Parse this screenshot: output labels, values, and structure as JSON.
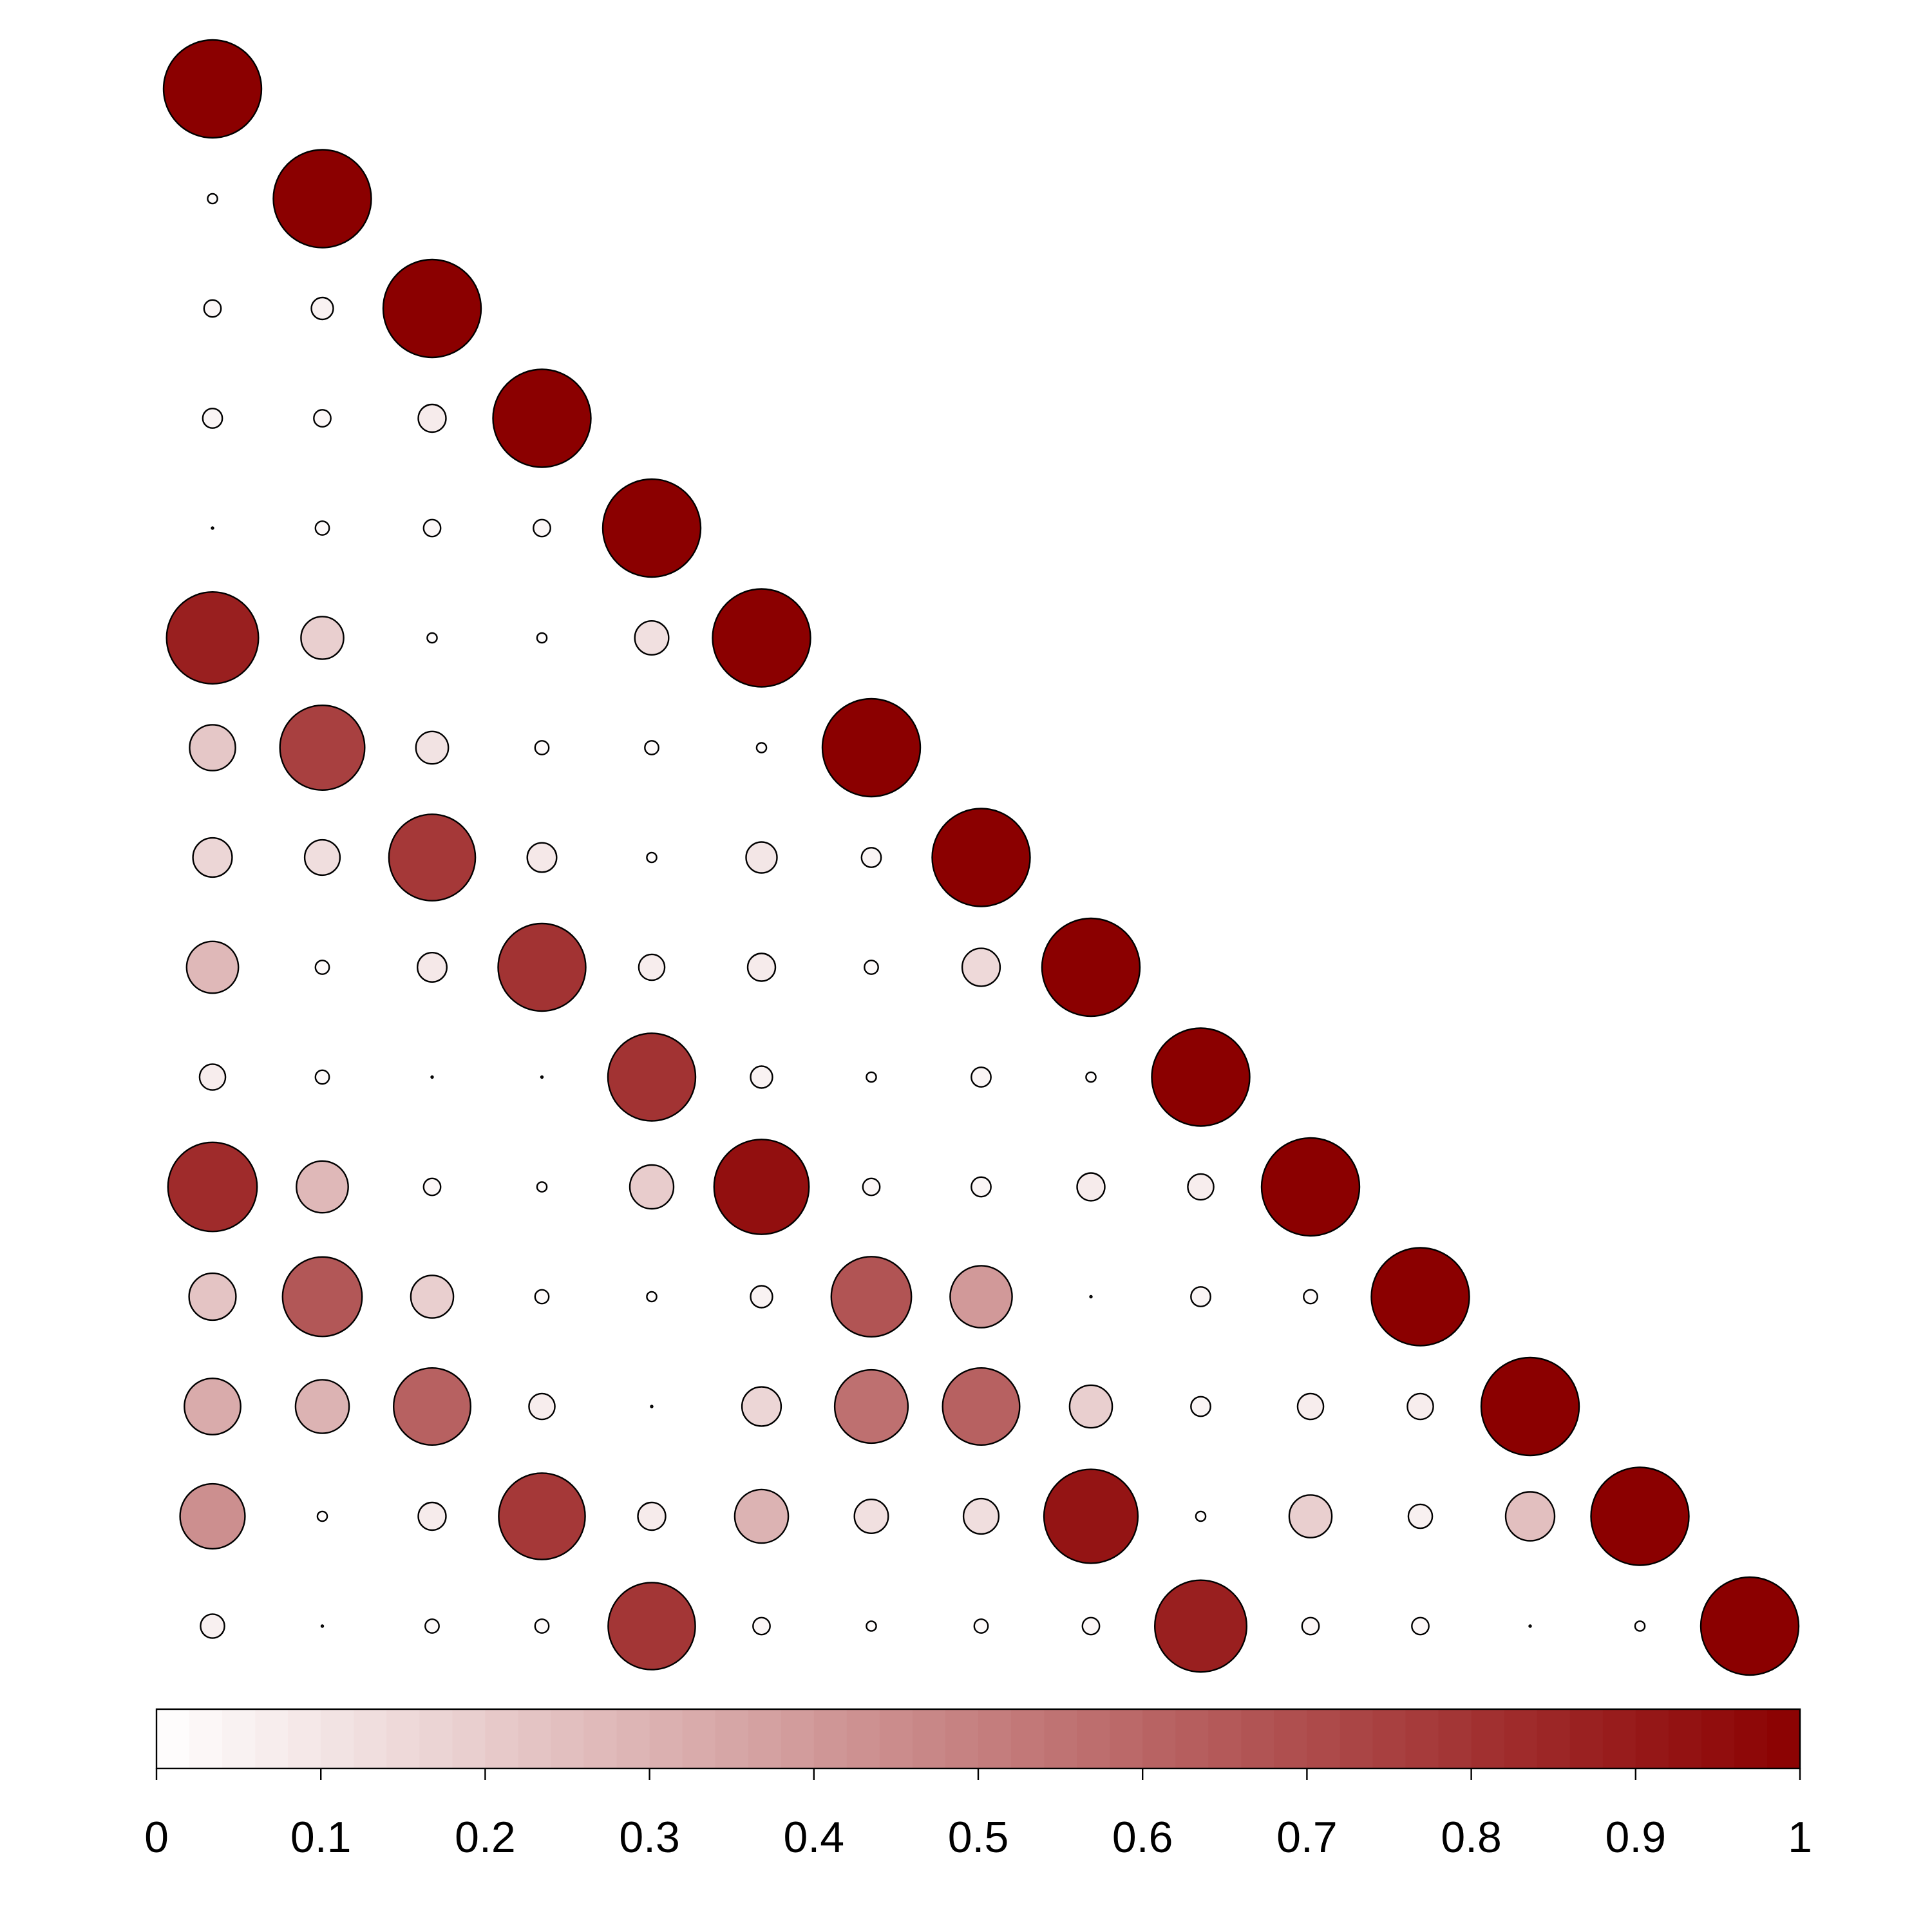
{
  "chart_data": {
    "type": "heatmap",
    "title": "",
    "xlabel": "",
    "ylabel": "",
    "encoding": "lower-triangle correlation matrix; circle area and fill colour scale with value",
    "variables": 15,
    "matrix": [
      [
        1.0
      ],
      [
        0.01,
        1.0
      ],
      [
        0.03,
        0.05,
        1.0
      ],
      [
        0.04,
        0.03,
        0.08,
        1.0
      ],
      [
        0.0,
        0.02,
        0.03,
        0.03,
        1.0
      ],
      [
        0.88,
        0.19,
        0.01,
        0.01,
        0.12,
        1.0
      ],
      [
        0.22,
        0.75,
        0.11,
        0.02,
        0.02,
        0.01,
        1.0
      ],
      [
        0.16,
        0.13,
        0.78,
        0.09,
        0.01,
        0.1,
        0.04,
        1.0
      ],
      [
        0.28,
        0.02,
        0.09,
        0.8,
        0.07,
        0.08,
        0.02,
        0.15,
        1.0
      ],
      [
        0.07,
        0.02,
        0.0,
        0.0,
        0.8,
        0.05,
        0.01,
        0.04,
        0.01,
        1.0
      ],
      [
        0.83,
        0.28,
        0.03,
        0.01,
        0.2,
        0.94,
        0.03,
        0.04,
        0.08,
        0.07,
        1.0
      ],
      [
        0.23,
        0.66,
        0.19,
        0.02,
        0.01,
        0.05,
        0.67,
        0.4,
        0.0,
        0.04,
        0.02,
        1.0
      ],
      [
        0.33,
        0.3,
        0.62,
        0.07,
        0.0,
        0.16,
        0.56,
        0.62,
        0.19,
        0.04,
        0.07,
        0.07,
        1.0
      ],
      [
        0.44,
        0.01,
        0.08,
        0.78,
        0.08,
        0.3,
        0.12,
        0.13,
        0.92,
        0.01,
        0.19,
        0.06,
        0.25,
        1.0
      ],
      [
        0.06,
        0.0,
        0.02,
        0.02,
        0.79,
        0.03,
        0.01,
        0.02,
        0.03,
        0.88,
        0.03,
        0.03,
        0.0,
        0.01,
        1.0
      ]
    ],
    "colorbar": {
      "range": [
        0,
        1
      ],
      "ticks": [
        "0",
        "0.1",
        "0.2",
        "0.3",
        "0.4",
        "0.5",
        "0.6",
        "0.7",
        "0.8",
        "0.9",
        "1"
      ],
      "color_low": "#ffffff",
      "color_high": "#8b0000"
    },
    "grid": false,
    "legend": "bottom"
  }
}
